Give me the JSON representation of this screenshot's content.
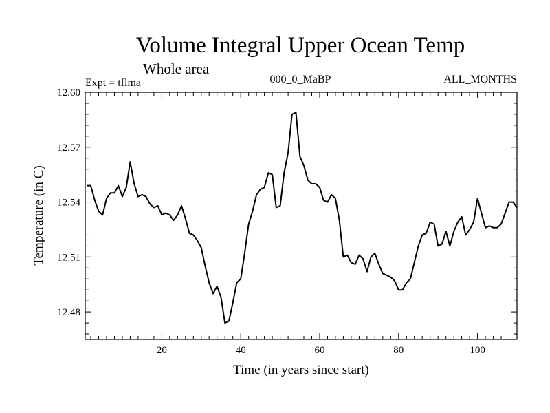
{
  "chart_data": {
    "type": "line",
    "title": "Volume Integral Upper Ocean Temp",
    "subtitle": "Whole area",
    "expt_label": "Expt = tflma",
    "run_label": "000_0_MaBP",
    "season_label": "ALL_MONTHS",
    "xlabel": "Time (in years since start)",
    "ylabel": "Temperature (in C)",
    "xlim": [
      0.6,
      110
    ],
    "ylim": [
      12.465,
      12.6
    ],
    "x_ticks": [
      20,
      40,
      60,
      80,
      100
    ],
    "y_ticks": [
      12.48,
      12.51,
      12.54,
      12.57,
      12.6
    ],
    "y_tick_labels": [
      "12.48",
      "12.51",
      "12.54",
      "12.57",
      "12.60"
    ],
    "grid": false,
    "series": [
      {
        "name": "Temperature",
        "color": "#000000",
        "x": [
          1,
          2,
          3,
          4,
          5,
          6,
          7,
          8,
          9,
          10,
          11,
          12,
          13,
          14,
          15,
          16,
          17,
          18,
          19,
          20,
          21,
          22,
          23,
          24,
          25,
          26,
          27,
          28,
          29,
          30,
          31,
          32,
          33,
          34,
          35,
          36,
          37,
          38,
          39,
          40,
          41,
          42,
          43,
          44,
          45,
          46,
          47,
          48,
          49,
          50,
          51,
          52,
          53,
          54,
          55,
          56,
          57,
          58,
          59,
          60,
          61,
          62,
          63,
          64,
          65,
          66,
          67,
          68,
          69,
          70,
          71,
          72,
          73,
          74,
          75,
          76,
          77,
          78,
          79,
          80,
          81,
          82,
          83,
          84,
          85,
          86,
          87,
          88,
          89,
          90,
          91,
          92,
          93,
          94,
          95,
          96,
          97,
          98,
          99,
          100,
          101,
          102,
          103,
          104,
          105,
          106,
          107,
          108,
          109,
          110
        ],
        "values": [
          12.549,
          12.549,
          12.541,
          12.535,
          12.533,
          12.542,
          12.545,
          12.545,
          12.549,
          12.543,
          12.548,
          12.562,
          12.55,
          12.543,
          12.544,
          12.543,
          12.539,
          12.537,
          12.538,
          12.533,
          12.534,
          12.533,
          12.53,
          12.533,
          12.538,
          12.531,
          12.523,
          12.522,
          12.519,
          12.515,
          12.505,
          12.496,
          12.49,
          12.494,
          12.488,
          12.474,
          12.475,
          12.485,
          12.496,
          12.498,
          12.512,
          12.528,
          12.535,
          12.544,
          12.547,
          12.548,
          12.556,
          12.555,
          12.537,
          12.538,
          12.556,
          12.567,
          12.588,
          12.589,
          12.565,
          12.56,
          12.552,
          12.55,
          12.55,
          12.548,
          12.541,
          12.54,
          12.544,
          12.542,
          12.53,
          12.51,
          12.511,
          12.507,
          12.506,
          12.511,
          12.509,
          12.502,
          12.51,
          12.512,
          12.506,
          12.501,
          12.5,
          12.499,
          12.497,
          12.492,
          12.492,
          12.496,
          12.498,
          12.507,
          12.516,
          12.522,
          12.523,
          12.529,
          12.528,
          12.516,
          12.517,
          12.524,
          12.516,
          12.524,
          12.529,
          12.532,
          12.522,
          12.525,
          12.529,
          12.542,
          12.534,
          12.526,
          12.527,
          12.526,
          12.526,
          12.528,
          12.534,
          12.54,
          12.54,
          12.537
        ]
      }
    ]
  }
}
